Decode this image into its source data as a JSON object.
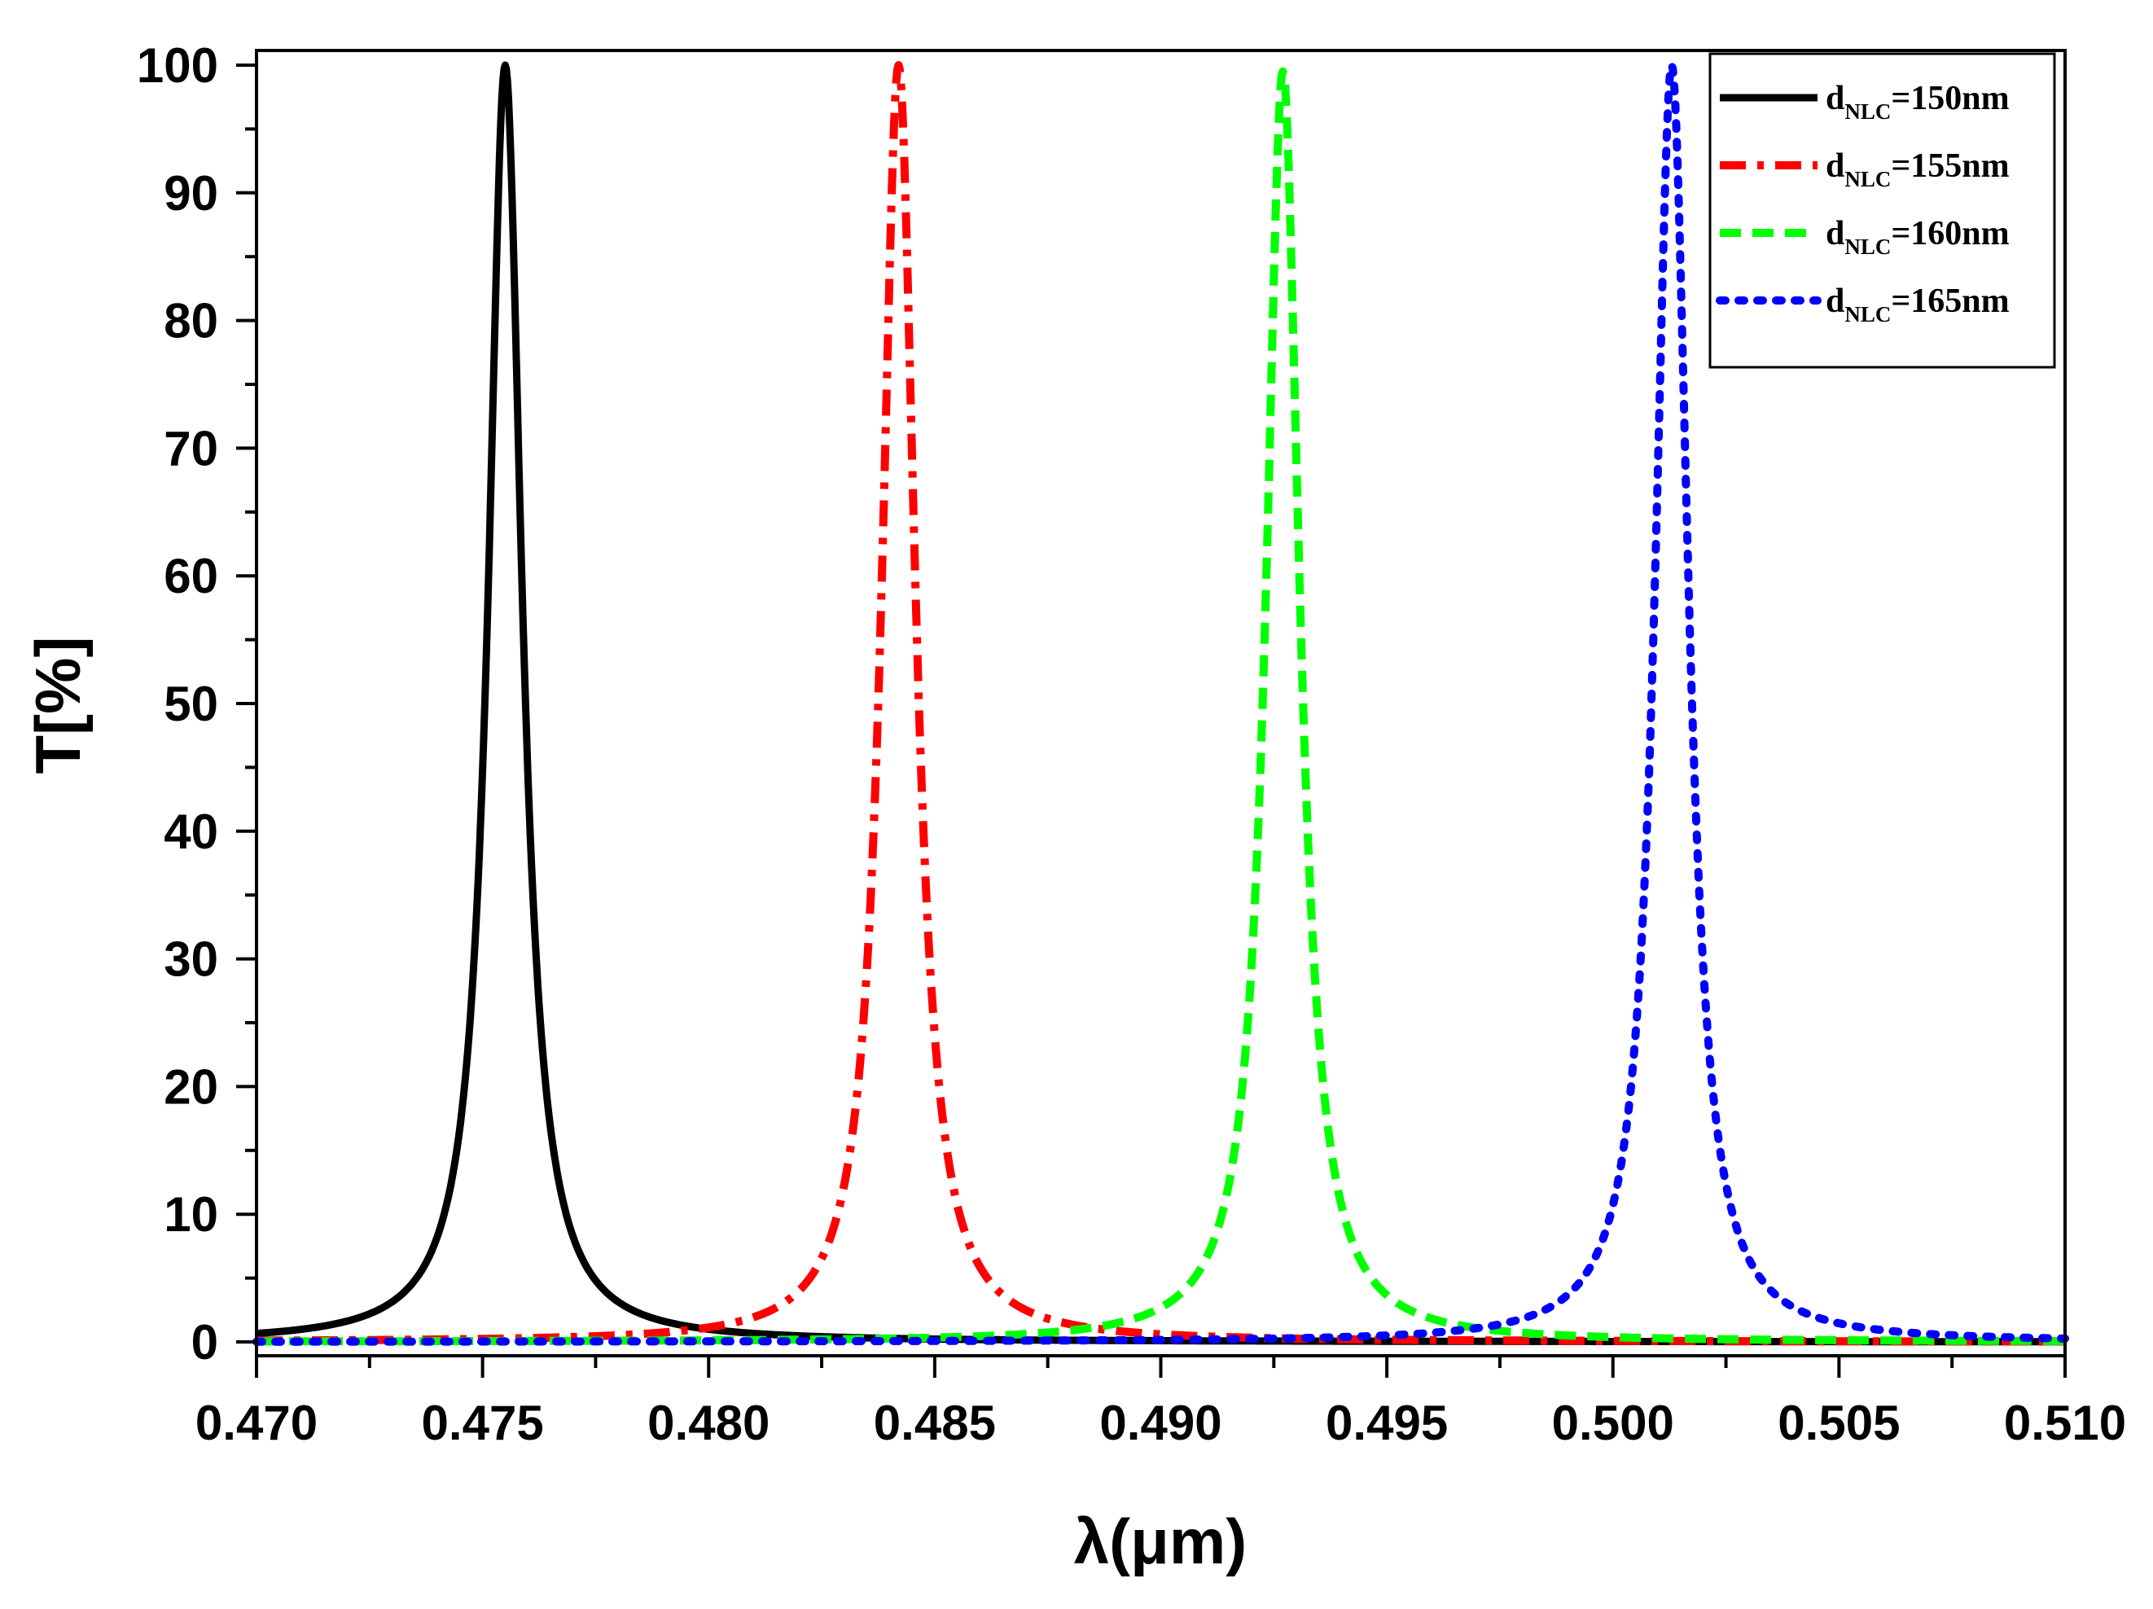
{
  "chart_data": {
    "type": "line",
    "title": "",
    "xlabel": "λ(μm)",
    "ylabel": "T[%]",
    "xlim": [
      0.47,
      0.51
    ],
    "ylim": [
      0,
      100
    ],
    "x_ticks": [
      "0.470",
      "0.475",
      "0.480",
      "0.485",
      "0.490",
      "0.495",
      "0.500",
      "0.505",
      "0.510"
    ],
    "y_ticks": [
      "0",
      "10",
      "20",
      "30",
      "40",
      "50",
      "60",
      "70",
      "80",
      "90",
      "100"
    ],
    "legend_position": "top-right",
    "series": [
      {
        "name": "dNLC=150nm",
        "legend": {
          "pre": "d",
          "sub": "NLC",
          "post": "=150nm"
        },
        "color": "#000000",
        "style": "solid",
        "peak_wavelength": 0.4755,
        "peak_transmission": 100,
        "half_width": 0.00045
      },
      {
        "name": "dNLC=155nm",
        "legend": {
          "pre": "d",
          "sub": "NLC",
          "post": "=155nm"
        },
        "color": "#ff0000",
        "style": "dash-dot",
        "peak_wavelength": 0.4842,
        "peak_transmission": 100,
        "half_width": 0.00045
      },
      {
        "name": "dNLC=160nm",
        "legend": {
          "pre": "d",
          "sub": "NLC",
          "post": "=160nm"
        },
        "color": "#00ff00",
        "style": "dash",
        "peak_wavelength": 0.4927,
        "peak_transmission": 99.5,
        "half_width": 0.00045
      },
      {
        "name": "dNLC=165nm",
        "legend": {
          "pre": "d",
          "sub": "NLC",
          "post": "=165nm"
        },
        "color": "#0000ff",
        "style": "dot",
        "peak_wavelength": 0.5013,
        "peak_transmission": 100,
        "half_width": 0.00045
      }
    ]
  }
}
